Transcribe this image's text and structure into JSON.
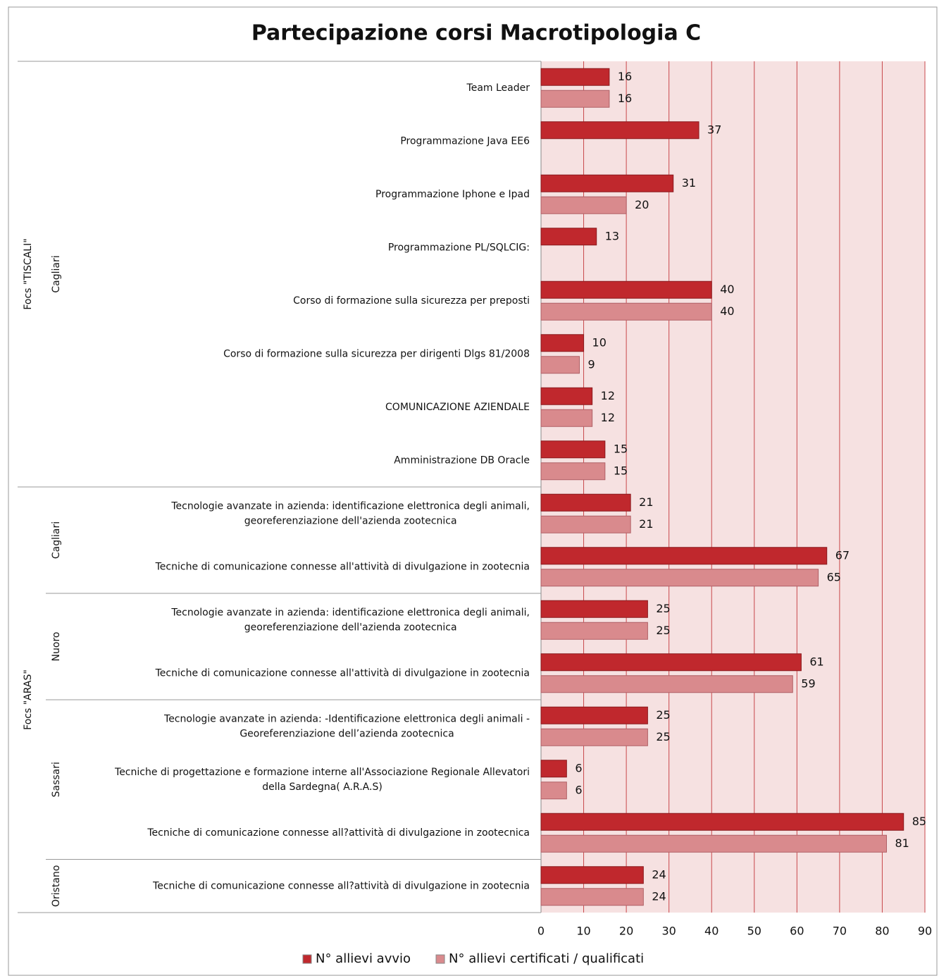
{
  "chart_data": {
    "type": "bar",
    "orientation": "horizontal",
    "title": "Partecipazione corsi Macrotipologia C",
    "groups": [
      {
        "name": "Focs \"TISCALI\"",
        "subgroups": [
          {
            "name": "Cagliari",
            "categories": [
              [
                "Team Leader"
              ],
              [
                "Programmazione Java EE6"
              ],
              [
                "Programmazione Iphone e Ipad"
              ],
              [
                "Programmazione PL/SQLCIG:"
              ],
              [
                "Corso di formazione sulla sicurezza per preposti"
              ],
              [
                "Corso di formazione sulla sicurezza per dirigenti Dlgs 81/2008"
              ],
              [
                "COMUNICAZIONE AZIENDALE"
              ],
              [
                "Amministrazione DB Oracle"
              ]
            ]
          }
        ]
      },
      {
        "name": "Focs \"ARAS\"",
        "subgroups": [
          {
            "name": "Cagliari",
            "categories": [
              [
                "Tecnologie avanzate in azienda: identificazione elettronica degli animali,",
                "georeferenziazione dell'azienda zootecnica"
              ],
              [
                "Tecniche di comunicazione connesse all'attività di divulgazione in zootecnia"
              ]
            ]
          },
          {
            "name": "Nuoro",
            "categories": [
              [
                "Tecnologie avanzate in azienda: identificazione elettronica degli animali,",
                "georeferenziazione dell'azienda zootecnica"
              ],
              [
                "Tecniche di comunicazione connesse all'attività di divulgazione in zootecnia"
              ]
            ]
          },
          {
            "name": "Sassari",
            "categories": [
              [
                "Tecnologie avanzate in azienda: -Identificazione elettronica degli animali -",
                "Georeferenziazione dell’azienda zootecnica"
              ],
              [
                "Tecniche di progettazione e formazione interne all'Associazione Regionale Allevatori",
                "della Sardegna( A.R.A.S)"
              ],
              [
                "Tecniche di comunicazione connesse all?attività di divulgazione in zootecnica"
              ]
            ]
          },
          {
            "name": "Oristano",
            "categories": [
              [
                "Tecniche di comunicazione connesse all?attività di divulgazione in zootecnia"
              ]
            ]
          }
        ]
      }
    ],
    "series": [
      {
        "name": "N° allievi avvio",
        "color": "#c0282d",
        "values": [
          16,
          37,
          31,
          13,
          40,
          10,
          12,
          15,
          21,
          67,
          25,
          61,
          25,
          6,
          85,
          24
        ]
      },
      {
        "name": "N° allievi certificati / qualificati",
        "color": "#d98a8d",
        "values": [
          16,
          null,
          20,
          null,
          40,
          9,
          12,
          15,
          21,
          65,
          25,
          59,
          25,
          6,
          81,
          24
        ]
      }
    ],
    "xlim": [
      0,
      90
    ],
    "xticks": [
      0,
      10,
      20,
      30,
      40,
      50,
      60,
      70,
      80,
      90
    ],
    "grid": true,
    "legend": "bottom"
  }
}
